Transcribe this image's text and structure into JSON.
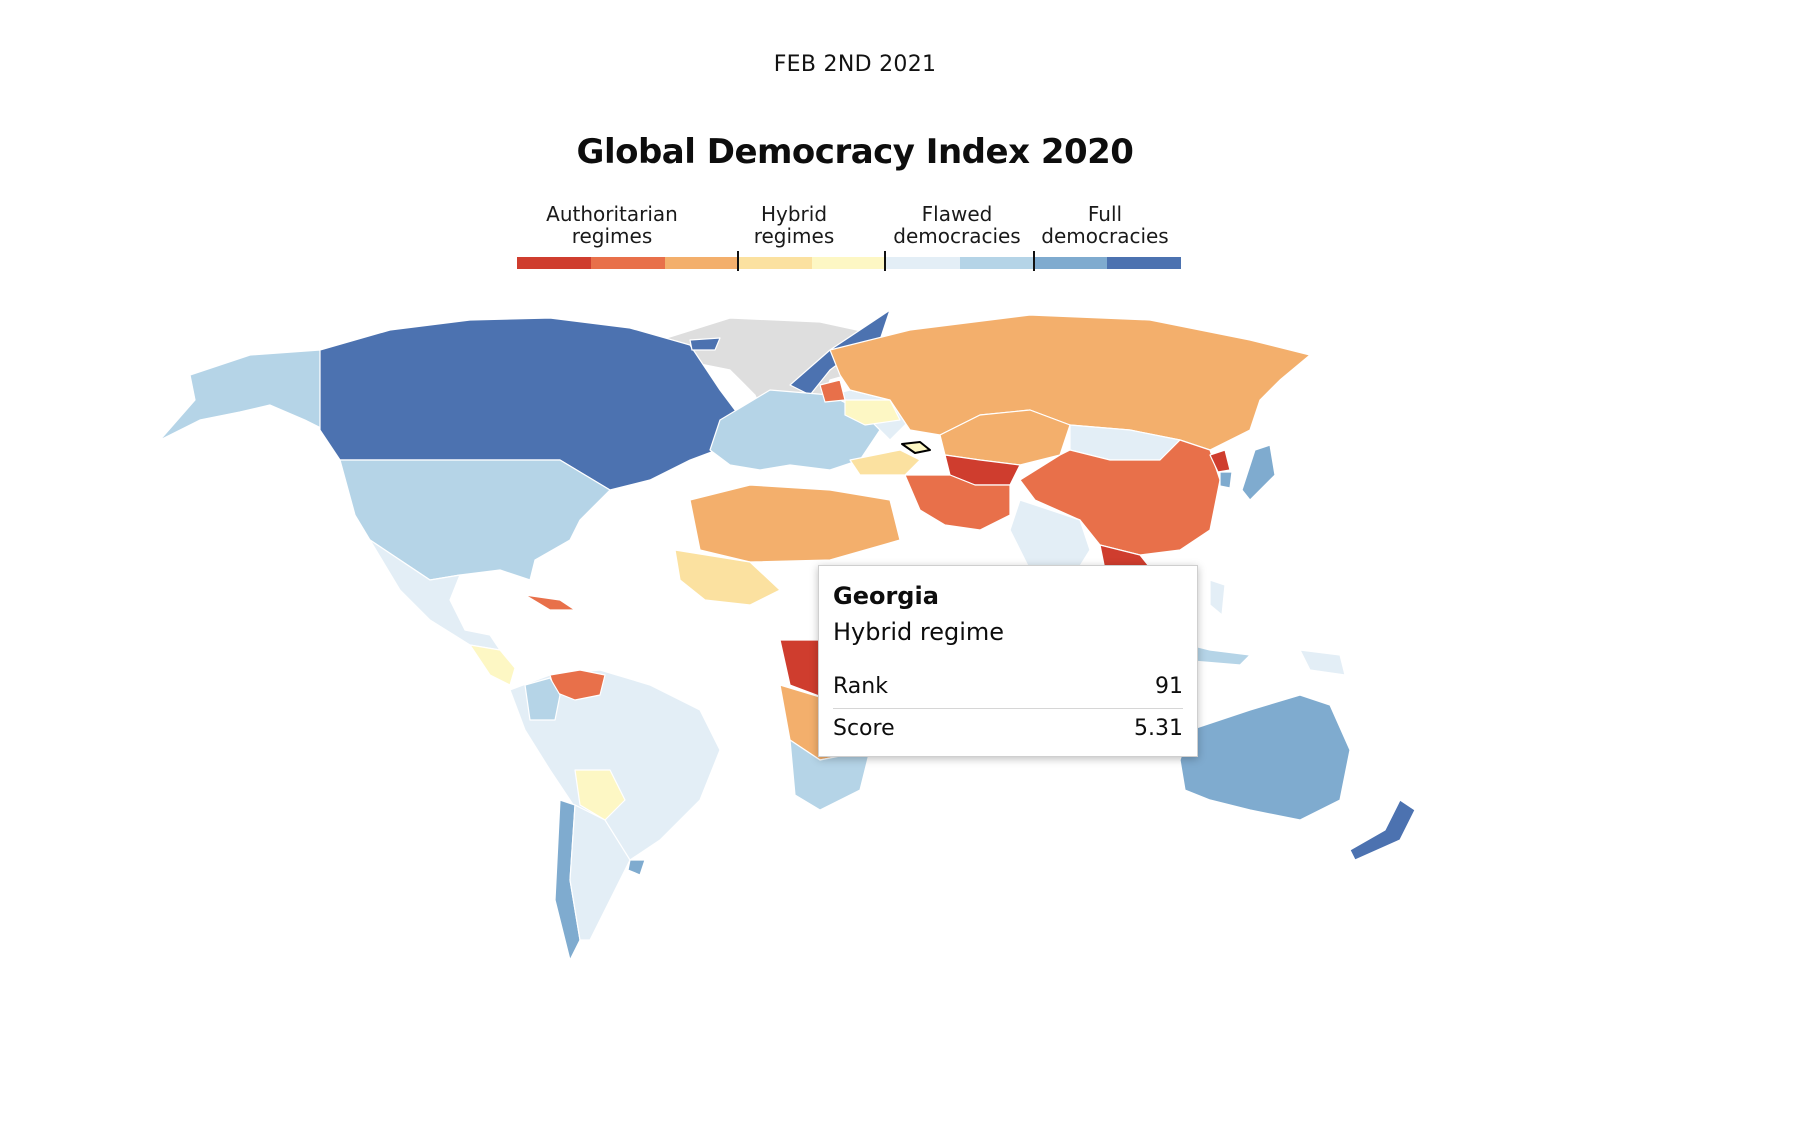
{
  "date": "FEB 2ND 2021",
  "title": "Global Democracy Index 2020",
  "legend": {
    "categories": [
      {
        "label_line1": "Authoritarian",
        "label_line2": "regimes"
      },
      {
        "label_line1": "Hybrid",
        "label_line2": "regimes"
      },
      {
        "label_line1": "Flawed",
        "label_line2": "democracies"
      },
      {
        "label_line1": "Full",
        "label_line2": "democracies"
      }
    ],
    "colors": [
      "#cf3d2e",
      "#e8704a",
      "#f3af6c",
      "#fbe1a0",
      "#fdf7c4",
      "#e3eef6",
      "#b5d4e7",
      "#7fabcf",
      "#4c72b0"
    ]
  },
  "tooltip": {
    "country": "Georgia",
    "regime": "Hybrid regime",
    "rank_label": "Rank",
    "rank_value": "91",
    "score_label": "Score",
    "score_value": "5.31"
  }
}
